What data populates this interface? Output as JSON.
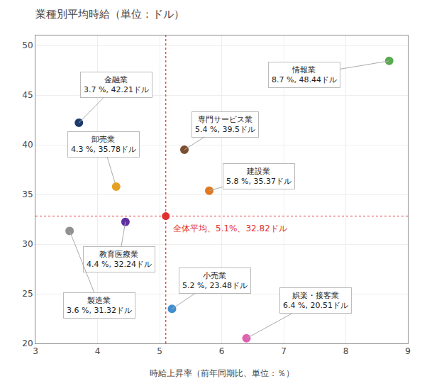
{
  "chart_data": {
    "type": "scatter",
    "title": "業種別平均時給（単位：ドル）",
    "xlabel": "時給上昇率（前年同期比、単位：％）",
    "xlim": [
      3.0,
      9.0
    ],
    "ylim": [
      20,
      51
    ],
    "xticks": [
      3,
      4,
      5,
      6,
      7,
      8,
      9
    ],
    "yticks": [
      20,
      25,
      30,
      35,
      40,
      45,
      50
    ],
    "grid": true,
    "average": {
      "x": 5.1,
      "y": 32.82,
      "label": "全体平均、5.1%、32.82ドル",
      "color": "#e03030"
    },
    "series": [
      {
        "name": "情報業",
        "color": "#5aaa50",
        "x": [
          8.7
        ],
        "values": [
          48.44
        ],
        "value_labels": [
          "8.7 %, 48.44ドル"
        ]
      },
      {
        "name": "金融業",
        "color": "#1e3a6e",
        "x": [
          3.7
        ],
        "values": [
          42.21
        ],
        "value_labels": [
          "3.7 %, 42.21ドル"
        ]
      },
      {
        "name": "専門サービス業",
        "color": "#7b4f2e",
        "x": [
          5.4
        ],
        "values": [
          39.5
        ],
        "value_labels": [
          "5.4 %, 39.5ドル"
        ]
      },
      {
        "name": "卸売業",
        "color": "#e8a020",
        "x": [
          4.3
        ],
        "values": [
          35.78
        ],
        "value_labels": [
          "4.3 %, 35.78ドル"
        ]
      },
      {
        "name": "建設業",
        "color": "#e07820",
        "x": [
          5.8
        ],
        "values": [
          35.37
        ],
        "value_labels": [
          "5.8 %, 35.37ドル"
        ]
      },
      {
        "name": "教育医療業",
        "color": "#6030a0",
        "x": [
          4.45
        ],
        "values": [
          32.24
        ],
        "value_labels": [
          "4.4 %, 32.24ドル"
        ]
      },
      {
        "name": "製造業",
        "color": "#909090",
        "x": [
          3.55
        ],
        "values": [
          31.32
        ],
        "value_labels": [
          "3.6 %, 31.32ドル"
        ]
      },
      {
        "name": "小売業",
        "color": "#4090d0",
        "x": [
          5.2
        ],
        "values": [
          23.48
        ],
        "value_labels": [
          "5.2 %, 23.48ドル"
        ]
      },
      {
        "name": "娯楽・接客業",
        "color": "#e060b0",
        "x": [
          6.4
        ],
        "values": [
          20.51
        ],
        "value_labels": [
          "6.4 %, 20.51ドル"
        ]
      }
    ]
  }
}
